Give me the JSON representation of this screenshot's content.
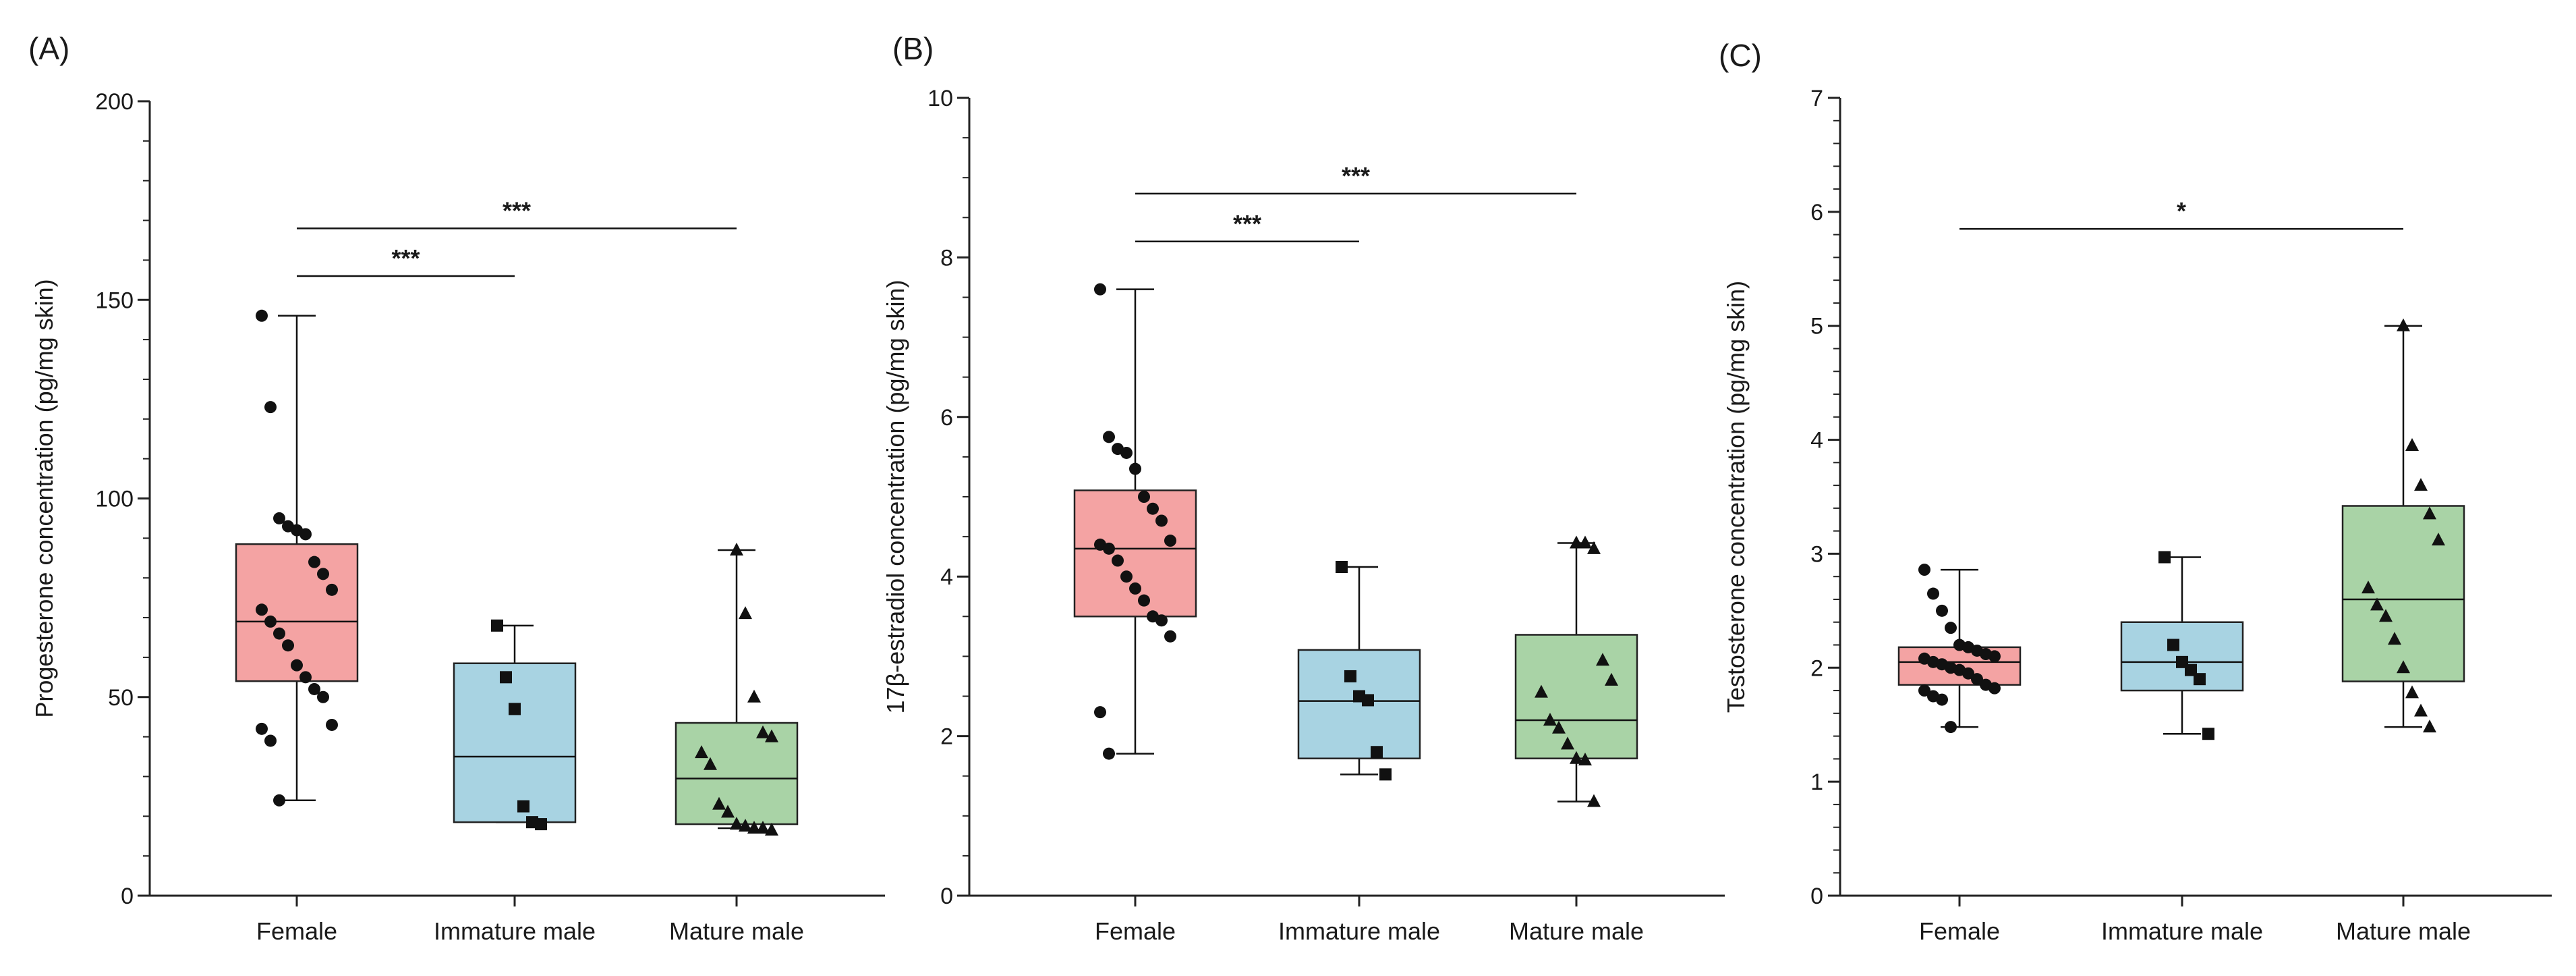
{
  "chart_data": [
    {
      "panel_label": "(A)",
      "type": "box",
      "title": "",
      "xlabel": "",
      "ylabel": "Progesterone concentration (pg/mg skin)",
      "ylim": [
        0,
        200
      ],
      "yticks": [
        0,
        50,
        100,
        150,
        200
      ],
      "minor_step": 10,
      "categories": [
        "Female",
        "Immature male",
        "Mature male"
      ],
      "box_colors": [
        "#f4a3a3",
        "#a8d3e2",
        "#a9d3a6"
      ],
      "markers": [
        "circle",
        "square",
        "triangle"
      ],
      "boxes": [
        {
          "min": 24,
          "q1": 54,
          "median": 69,
          "q3": 88.5,
          "max": 146
        },
        {
          "min": 18.5,
          "q1": 18.5,
          "median": 35,
          "q3": 58.5,
          "max": 68
        },
        {
          "min": 17,
          "q1": 18,
          "median": 29.5,
          "q3": 43.5,
          "max": 87
        }
      ],
      "points": [
        [
          146,
          123,
          95,
          93,
          92,
          91,
          84,
          81,
          77,
          72,
          69,
          66,
          63,
          58,
          55,
          52,
          50,
          43,
          42,
          39,
          24
        ],
        [
          68,
          55,
          47,
          22.5,
          18.5,
          18
        ],
        [
          87,
          71,
          50,
          41,
          40,
          36,
          33,
          23,
          21,
          18,
          17.5,
          17,
          17,
          16.5
        ]
      ],
      "significance": [
        {
          "from": 0,
          "to": 1,
          "label": "***",
          "y": 156
        },
        {
          "from": 0,
          "to": 2,
          "label": "***",
          "y": 168
        }
      ]
    },
    {
      "panel_label": "(B)",
      "type": "box",
      "title": "",
      "xlabel": "",
      "ylabel": "17β-estradiol concentration (pg/mg skin)",
      "ylim": [
        0,
        10
      ],
      "yticks": [
        0,
        2,
        4,
        6,
        8,
        10
      ],
      "minor_step": 0.5,
      "categories": [
        "Female",
        "Immature male",
        "Mature male"
      ],
      "box_colors": [
        "#f4a3a3",
        "#a8d3e2",
        "#a9d3a6"
      ],
      "markers": [
        "circle",
        "square",
        "triangle"
      ],
      "boxes": [
        {
          "min": 1.78,
          "q1": 3.5,
          "median": 4.35,
          "q3": 5.08,
          "max": 7.6
        },
        {
          "min": 1.52,
          "q1": 1.72,
          "median": 2.44,
          "q3": 3.08,
          "max": 4.12
        },
        {
          "min": 1.18,
          "q1": 1.72,
          "median": 2.2,
          "q3": 3.27,
          "max": 4.42
        }
      ],
      "points": [
        [
          7.6,
          5.75,
          5.6,
          5.55,
          5.35,
          5.0,
          4.85,
          4.7,
          4.45,
          4.4,
          4.35,
          4.2,
          4.0,
          3.85,
          3.7,
          3.5,
          3.45,
          3.25,
          2.3,
          1.78
        ],
        [
          4.12,
          2.75,
          2.5,
          2.45,
          1.8,
          1.52
        ],
        [
          4.42,
          4.42,
          4.35,
          2.95,
          2.7,
          2.55,
          2.2,
          2.1,
          1.9,
          1.72,
          1.7,
          1.18
        ]
      ],
      "significance": [
        {
          "from": 0,
          "to": 1,
          "label": "***",
          "y": 8.2
        },
        {
          "from": 0,
          "to": 2,
          "label": "***",
          "y": 8.8
        }
      ]
    },
    {
      "panel_label": "(C)",
      "type": "box",
      "title": "",
      "xlabel": "",
      "ylabel": "Testosterone concentration (pg/mg skin)",
      "ylim": [
        0,
        7
      ],
      "yticks": [
        0,
        1,
        2,
        3,
        4,
        5,
        6,
        7
      ],
      "minor_step": 0.2,
      "categories": [
        "Female",
        "Immature male",
        "Mature male"
      ],
      "box_colors": [
        "#f4a3a3",
        "#a8d3e2",
        "#a9d3a6"
      ],
      "markers": [
        "circle",
        "square",
        "triangle"
      ],
      "boxes": [
        {
          "min": 1.48,
          "q1": 1.85,
          "median": 2.05,
          "q3": 2.18,
          "max": 2.86
        },
        {
          "min": 1.42,
          "q1": 1.8,
          "median": 2.05,
          "q3": 2.4,
          "max": 2.97
        },
        {
          "min": 1.48,
          "q1": 1.88,
          "median": 2.6,
          "q3": 3.42,
          "max": 5.0
        }
      ],
      "points": [
        [
          2.86,
          2.65,
          2.5,
          2.35,
          2.2,
          2.18,
          2.15,
          2.12,
          2.1,
          2.08,
          2.05,
          2.03,
          2.0,
          1.98,
          1.95,
          1.9,
          1.85,
          1.82,
          1.8,
          1.75,
          1.72,
          1.48
        ],
        [
          2.97,
          2.2,
          2.05,
          1.98,
          1.9,
          1.42
        ],
        [
          5.0,
          3.95,
          3.6,
          3.35,
          3.12,
          2.7,
          2.55,
          2.45,
          2.25,
          2.0,
          1.78,
          1.62,
          1.48
        ]
      ],
      "significance": [
        {
          "from": 0,
          "to": 2,
          "label": "*",
          "y": 5.85
        }
      ]
    }
  ]
}
